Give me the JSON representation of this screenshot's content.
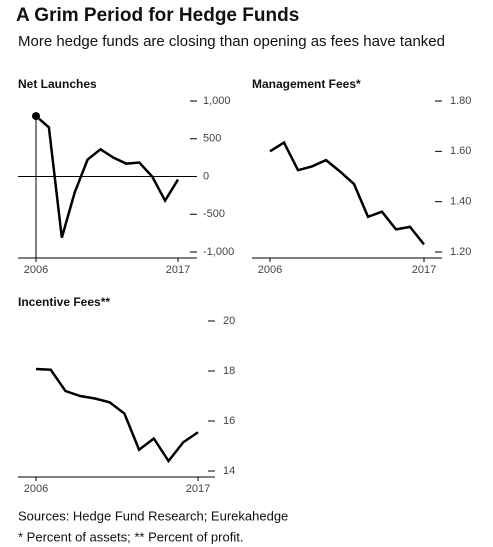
{
  "header": {
    "title": "A Grim Period for Hedge Funds",
    "subtitle": "More hedge funds are closing than opening as fees have tanked"
  },
  "chart_data": [
    {
      "type": "line",
      "title": "Net Launches",
      "highlight_first": true,
      "x": [
        2006,
        2007,
        2008,
        2009,
        2010,
        2011,
        2012,
        2013,
        2014,
        2015,
        2016,
        2017
      ],
      "series": [
        {
          "name": "Net Launches",
          "color": "#000000",
          "values": [
            800,
            650,
            -810,
            -210,
            225,
            360,
            250,
            170,
            185,
            0,
            -320,
            -40
          ]
        }
      ],
      "xlim": [
        2006,
        2017
      ],
      "xticks": [
        2006,
        2017
      ],
      "ylim": [
        -1000,
        1000
      ],
      "yticks": [
        {
          "value": 1000,
          "label": "1,000"
        },
        500,
        0,
        -500,
        {
          "value": -1000,
          "label": "-1,000"
        }
      ]
    },
    {
      "type": "line",
      "title": "Management Fees*",
      "highlight_first": false,
      "x": [
        2006,
        2007,
        2008,
        2009,
        2010,
        2011,
        2012,
        2013,
        2014,
        2015,
        2016,
        2017
      ],
      "series": [
        {
          "name": "Management Fees*",
          "color": "#000000",
          "values": [
            1.6,
            1.635,
            1.525,
            1.54,
            1.565,
            1.52,
            1.47,
            1.34,
            1.36,
            1.29,
            1.3,
            1.23
          ]
        }
      ],
      "xlim": [
        2006,
        2017
      ],
      "xticks": [
        2006,
        2017
      ],
      "ylim": [
        1.2,
        1.8
      ],
      "yticks": [
        {
          "value": 1.8,
          "label": "1.80"
        },
        {
          "value": 1.6,
          "label": "1.60"
        },
        {
          "value": 1.4,
          "label": "1.40"
        },
        {
          "value": 1.2,
          "label": "1.20"
        }
      ]
    },
    {
      "type": "line",
      "title": "Incentive Fees**",
      "highlight_first": false,
      "x": [
        2006,
        2007,
        2008,
        2009,
        2010,
        2011,
        2012,
        2013,
        2014,
        2015,
        2016,
        2017
      ],
      "series": [
        {
          "name": "Incentive Fees**",
          "color": "#000000",
          "values": [
            18.08,
            18.05,
            17.2,
            17.0,
            16.9,
            16.75,
            16.3,
            14.85,
            15.3,
            14.4,
            15.15,
            15.55
          ]
        }
      ],
      "xlim": [
        2006,
        2017
      ],
      "xticks": [
        2006,
        2017
      ],
      "ylim": [
        14,
        20
      ],
      "yticks": [
        20,
        18,
        16,
        14
      ]
    }
  ],
  "footer": {
    "sources": "Sources: Hedge Fund Research; Eurekahedge",
    "note": "* Percent of assets; ** Percent of profit."
  }
}
